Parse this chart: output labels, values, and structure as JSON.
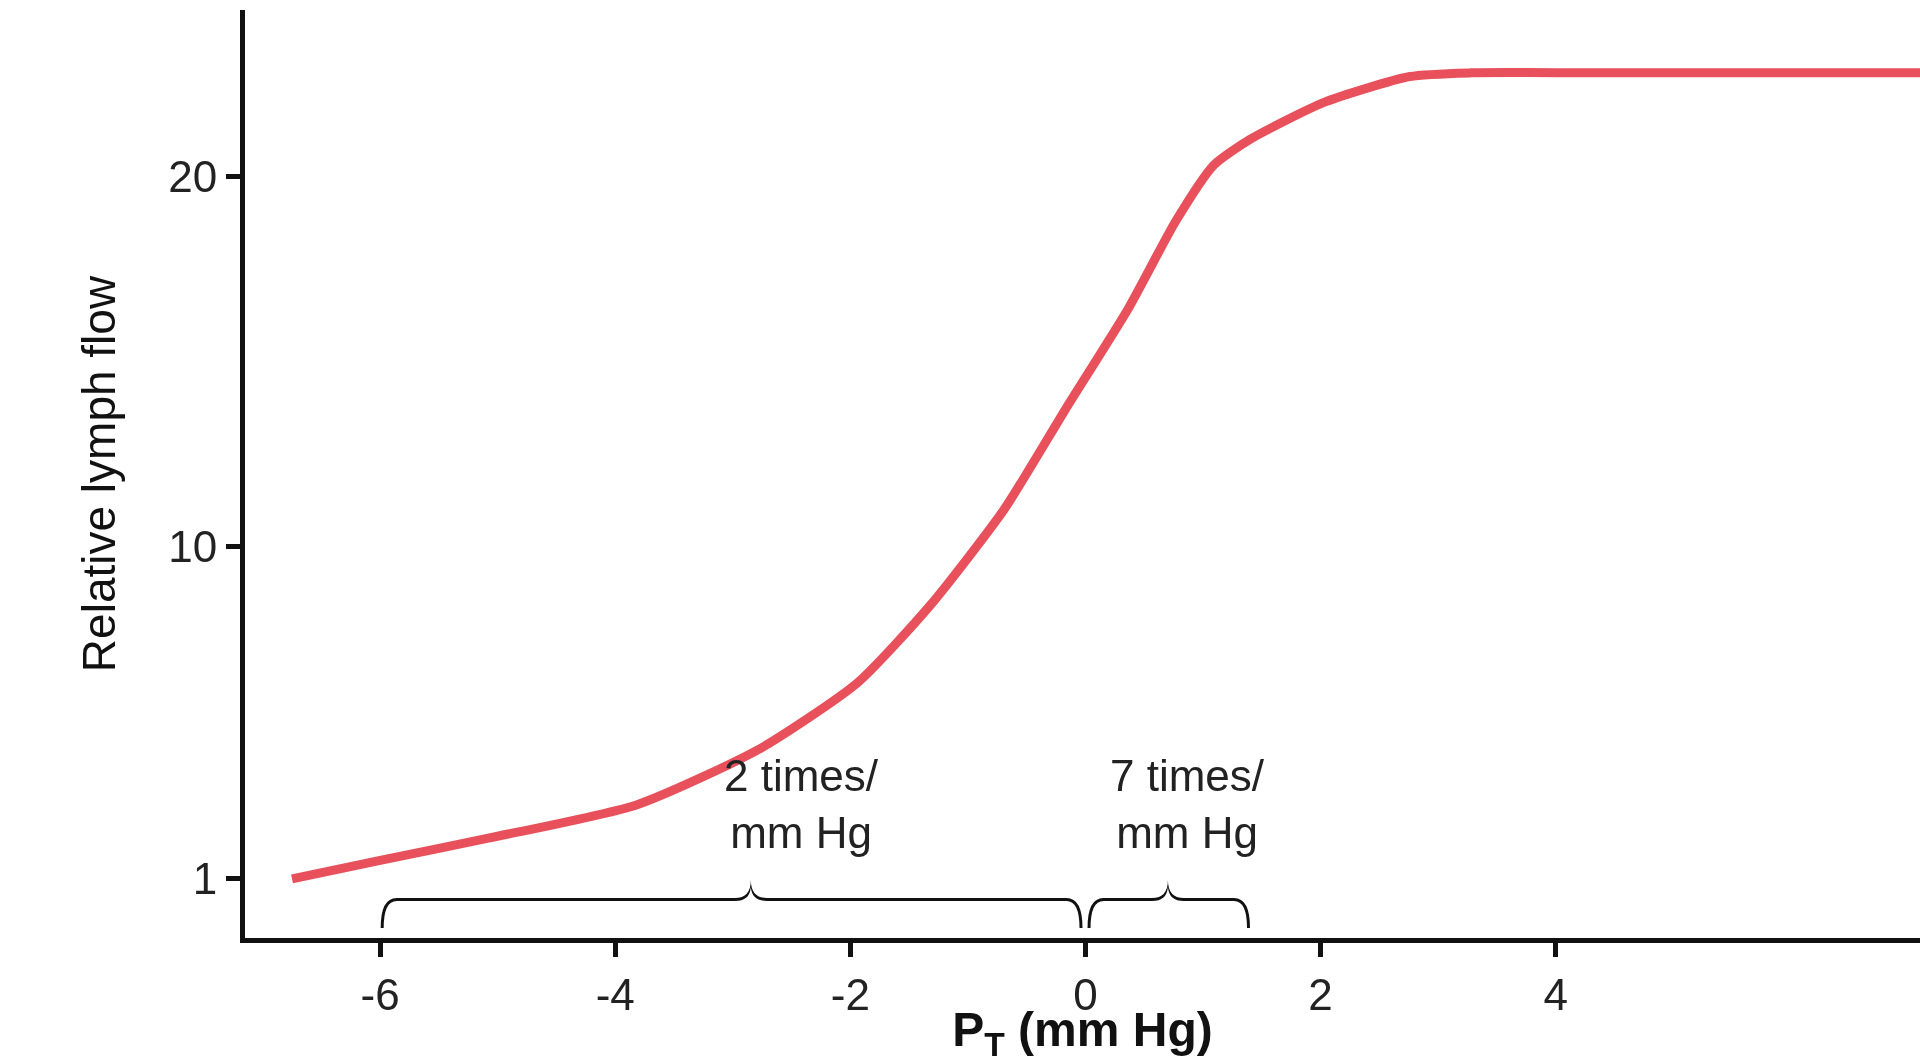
{
  "chart_data": {
    "type": "line",
    "xlabel": "P$_{T}$ (mm Hg)",
    "ylabel": "Relative lymph flow",
    "x": [
      -6.75,
      -6.0,
      -5.08,
      -3.82,
      -2.78,
      -1.94,
      -1.32,
      -0.69,
      -0.17,
      0.36,
      0.77,
      1.09,
      1.4,
      2.03,
      2.76,
      3.28,
      4.33,
      7.1
    ],
    "series": [
      {
        "color": "#e8505b",
        "values": [
          1,
          1.5,
          2.1,
          3.0,
          4.5,
          6.3,
          8.4,
          11.0,
          13.7,
          16.4,
          18.8,
          20.3,
          21.0,
          22.0,
          22.7,
          22.8,
          22.8,
          22.8
        ]
      }
    ],
    "xlim": [
      -7.15,
      7.1
    ],
    "xticks": [
      -6,
      -4,
      -2,
      0,
      2,
      4
    ],
    "ylim": [
      -0.6,
      24.5
    ],
    "yticks": [
      1,
      10,
      20
    ],
    "grid": false,
    "marker": "none",
    "line_style": "solid",
    "annotations": [
      "2 times/\nmm Hg",
      "7 times/\nmm Hg"
    ]
  }
}
